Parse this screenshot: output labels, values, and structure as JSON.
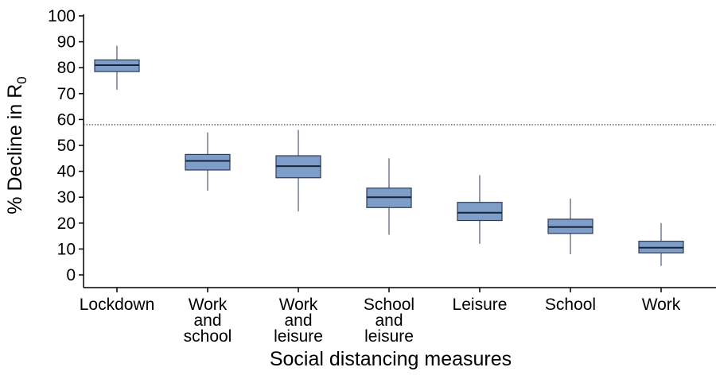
{
  "chart_data": {
    "type": "box",
    "xlabel": "Social distancing measures",
    "ylabel_main": "% Decline in R",
    "ylabel_sub": "0",
    "ylim": [
      0,
      100
    ],
    "yticks": [
      0,
      10,
      20,
      30,
      40,
      50,
      60,
      70,
      80,
      90,
      100
    ],
    "reference_line": 58,
    "grid": false,
    "box_color": "#7e9ec9",
    "box_edge_color": "#2b3a57",
    "categories": [
      {
        "lines": [
          "Lockdown"
        ],
        "min": 71.5,
        "q1": 78.5,
        "median": 81,
        "q3": 83,
        "max": 88.5
      },
      {
        "lines": [
          "Work",
          "and",
          "school"
        ],
        "min": 32.5,
        "q1": 40.5,
        "median": 44,
        "q3": 46.5,
        "max": 55
      },
      {
        "lines": [
          "Work",
          "and",
          "leisure"
        ],
        "min": 24.5,
        "q1": 37.5,
        "median": 42,
        "q3": 46,
        "max": 56
      },
      {
        "lines": [
          "School",
          "and",
          "leisure"
        ],
        "min": 15.5,
        "q1": 26,
        "median": 30,
        "q3": 33.5,
        "max": 45
      },
      {
        "lines": [
          "Leisure"
        ],
        "min": 12,
        "q1": 21,
        "median": 24,
        "q3": 28,
        "max": 38.5
      },
      {
        "lines": [
          "School"
        ],
        "min": 8,
        "q1": 16,
        "median": 18.5,
        "q3": 21.5,
        "max": 29.5
      },
      {
        "lines": [
          "Work"
        ],
        "min": 3.5,
        "q1": 8.5,
        "median": 10.5,
        "q3": 13,
        "max": 20
      }
    ]
  }
}
